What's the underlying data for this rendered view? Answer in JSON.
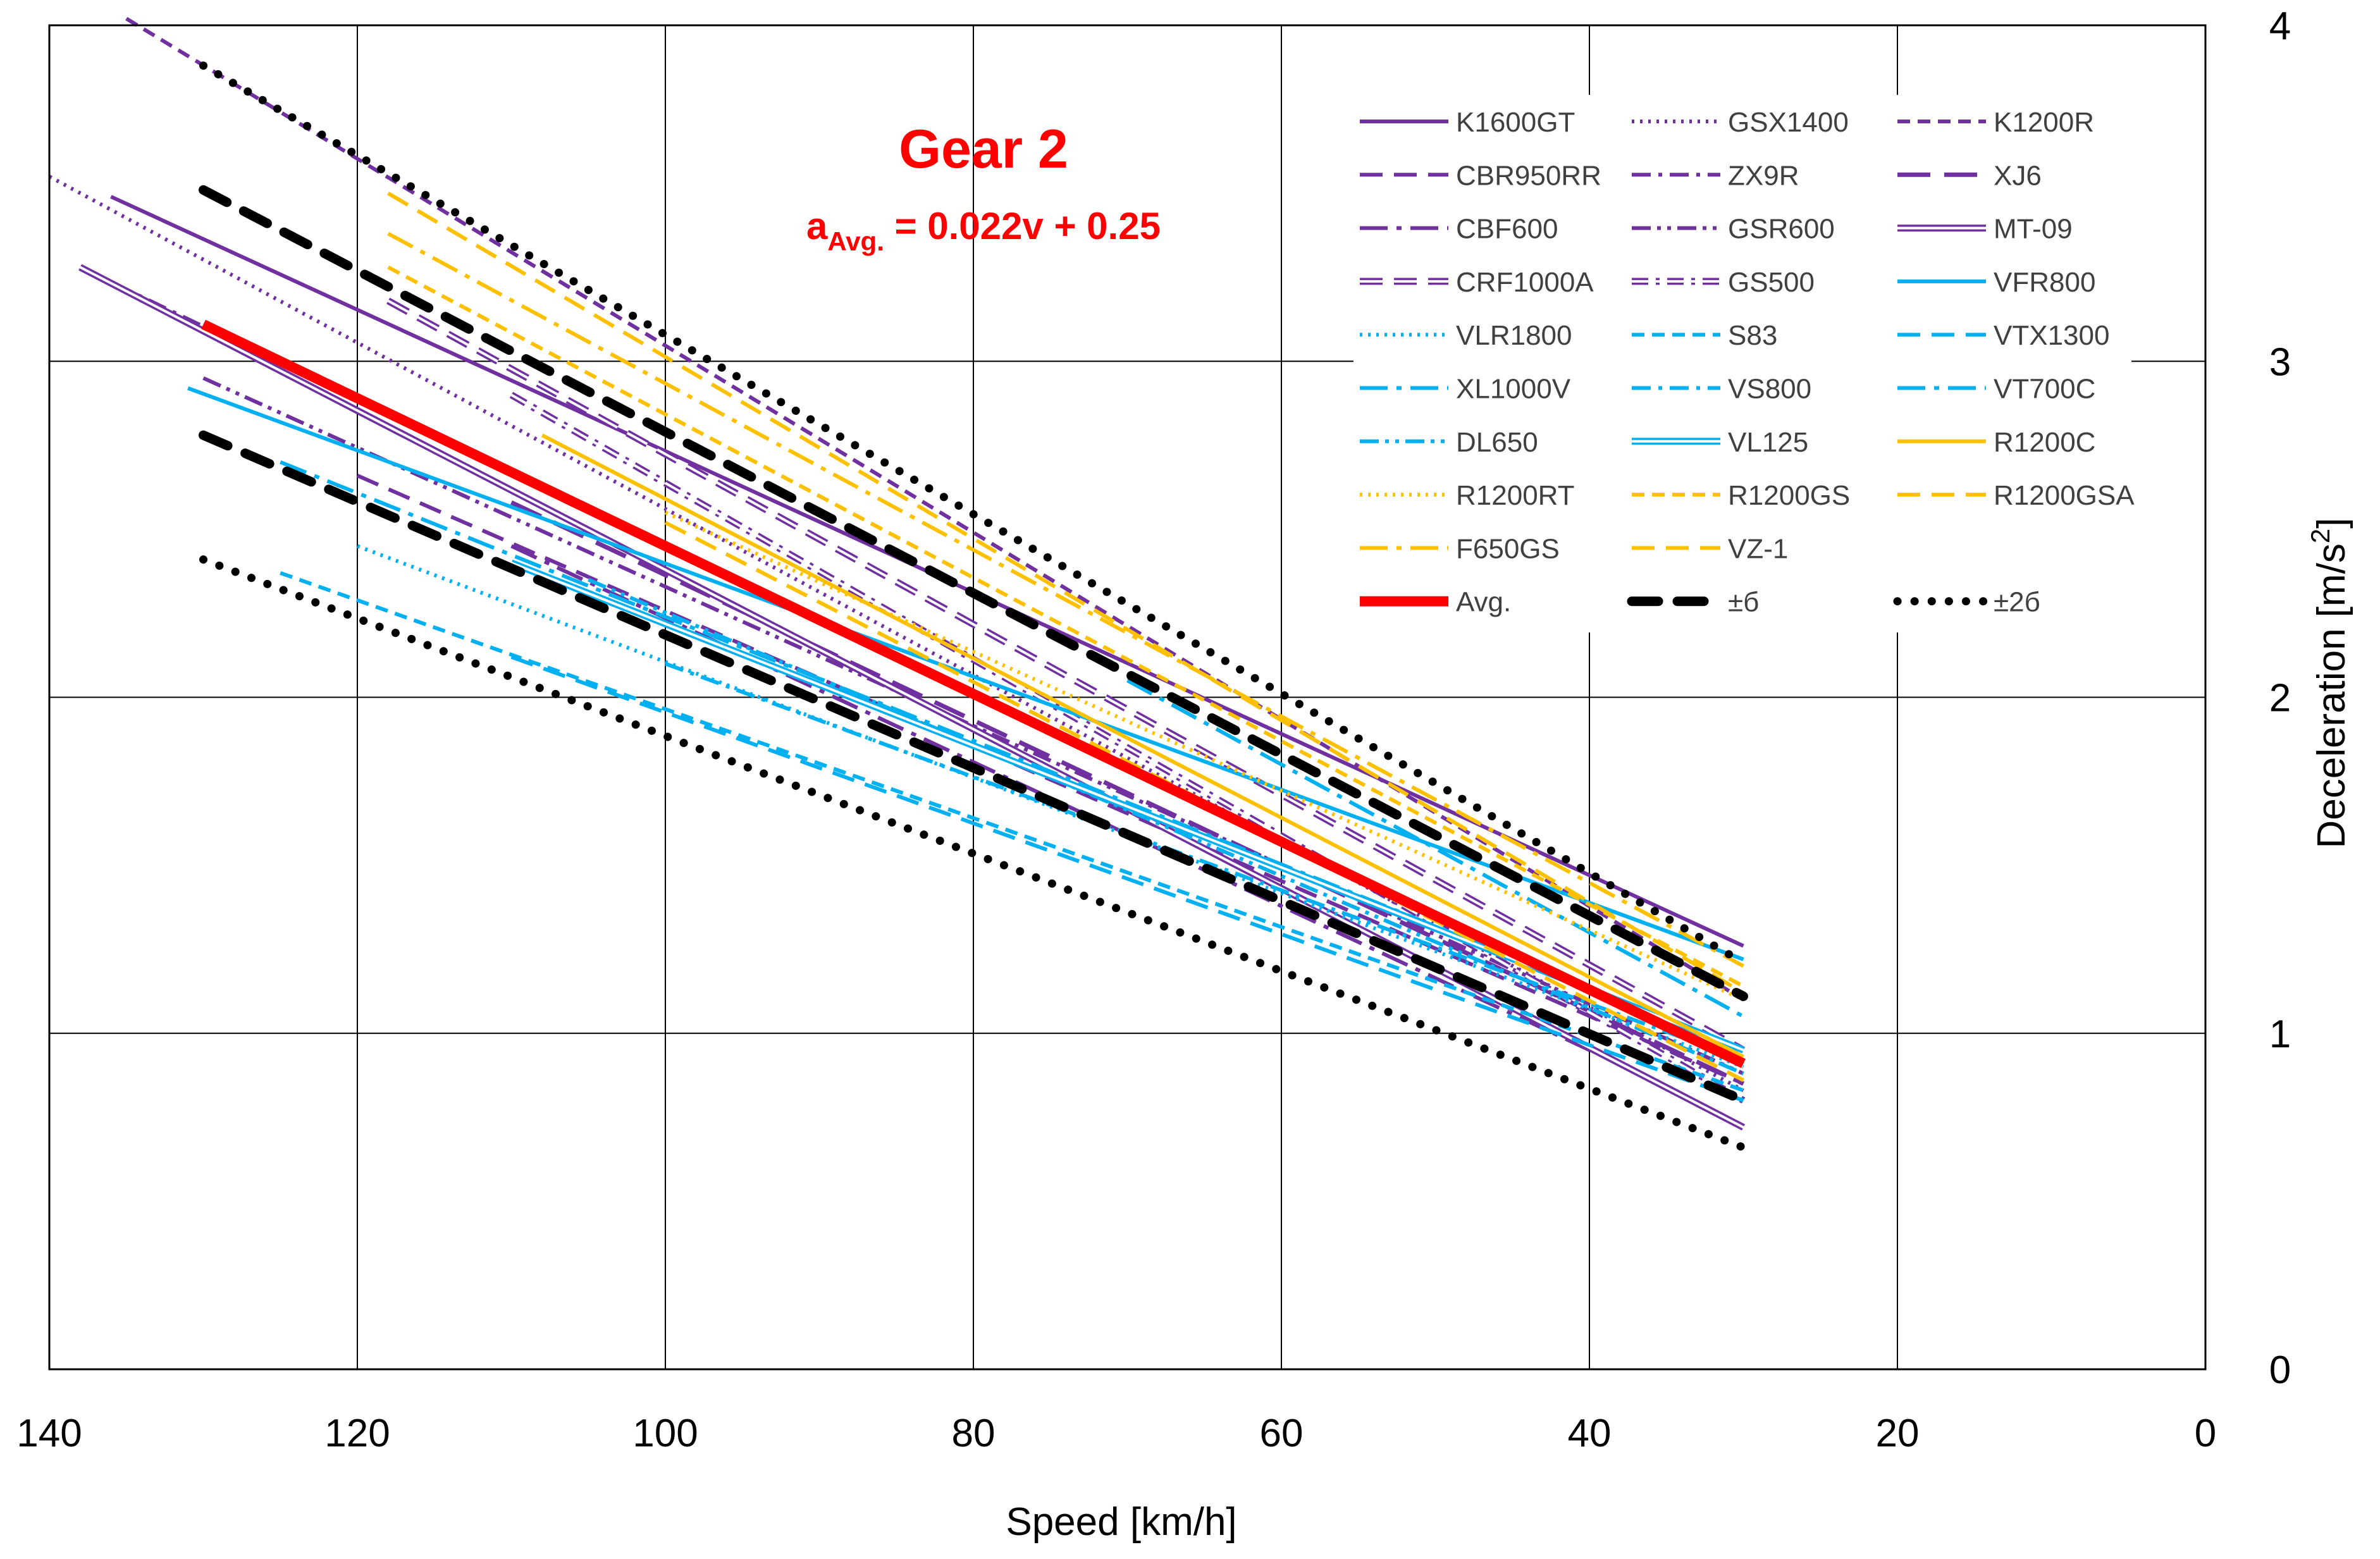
{
  "chart_data": {
    "type": "line",
    "title": "Gear 2",
    "formula": {
      "lead": "a",
      "sub": "Avg.",
      "rest": " = 0.022v + 0.25"
    },
    "xlabel": "Speed [km/h]",
    "ylabel_parts": {
      "main": "Deceleration [m/s",
      "sup": "2",
      "end": "]"
    },
    "xlim": [
      140,
      0
    ],
    "ylim": [
      0,
      4
    ],
    "x_ticks": [
      140,
      120,
      100,
      80,
      60,
      40,
      20,
      0
    ],
    "y_ticks": [
      0,
      1,
      2,
      3,
      4
    ],
    "grid": true,
    "legend_position": "top-right",
    "colors": {
      "purple": "#7030A0",
      "blue": "#00B0F0",
      "gold": "#FFC000",
      "red": "#FF0000",
      "black": "#000000"
    },
    "series": [
      {
        "name": "K1600GT",
        "color": "#7030A0",
        "style": "solid",
        "x": [
          136,
          30
        ],
        "y": [
          3.49,
          1.26
        ]
      },
      {
        "name": "GSX1400",
        "color": "#7030A0",
        "style": "dot",
        "x": [
          140,
          30
        ],
        "y": [
          3.55,
          0.83
        ]
      },
      {
        "name": "K1200R",
        "color": "#7030A0",
        "style": "dash",
        "x": [
          135,
          30
        ],
        "y": [
          4.02,
          1.1
        ]
      },
      {
        "name": "CBR950RR",
        "color": "#7030A0",
        "style": "longdash",
        "x": [
          120,
          30
        ],
        "y": [
          2.66,
          0.85
        ]
      },
      {
        "name": "ZX9R",
        "color": "#7030A0",
        "style": "dashdot",
        "x": [
          138,
          30
        ],
        "y": [
          3.28,
          0.9
        ]
      },
      {
        "name": "XJ6",
        "color": "#7030A0",
        "style": "longdashbig",
        "x": [
          110,
          30
        ],
        "y": [
          2.58,
          0.85
        ]
      },
      {
        "name": "CBF600",
        "color": "#7030A0",
        "style": "longdashdot",
        "x": [
          110,
          40
        ],
        "y": [
          2.45,
          0.95
        ]
      },
      {
        "name": "GSR600",
        "color": "#7030A0",
        "style": "dashdotdot",
        "x": [
          130,
          30
        ],
        "y": [
          2.95,
          0.88
        ]
      },
      {
        "name": "MT-09",
        "color": "#7030A0",
        "style": "double",
        "x": [
          138,
          30
        ],
        "y": [
          3.28,
          0.72
        ]
      },
      {
        "name": "CRF1000A",
        "color": "#7030A0",
        "style": "doubledash",
        "x": [
          118,
          30
        ],
        "y": [
          3.18,
          0.95
        ]
      },
      {
        "name": "GS500",
        "color": "#7030A0",
        "style": "doubledashdot",
        "x": [
          110,
          30
        ],
        "y": [
          2.9,
          0.8
        ]
      },
      {
        "name": "VFR800",
        "color": "#00B0F0",
        "style": "solid",
        "x": [
          131,
          30
        ],
        "y": [
          2.92,
          1.22
        ]
      },
      {
        "name": "VLR1800",
        "color": "#00B0F0",
        "style": "dot",
        "x": [
          120,
          30
        ],
        "y": [
          2.45,
          0.9
        ]
      },
      {
        "name": "S83",
        "color": "#00B0F0",
        "style": "dash",
        "x": [
          125,
          30
        ],
        "y": [
          2.37,
          0.83
        ]
      },
      {
        "name": "VTX1300",
        "color": "#00B0F0",
        "style": "longdash",
        "x": [
          110,
          30
        ],
        "y": [
          2.12,
          0.8
        ]
      },
      {
        "name": "XL1000V",
        "color": "#00B0F0",
        "style": "longdashdot",
        "x": [
          125,
          30
        ],
        "y": [
          2.7,
          0.95
        ]
      },
      {
        "name": "VS800",
        "color": "#00B0F0",
        "style": "dashdot",
        "x": [
          100,
          30
        ],
        "y": [
          2.1,
          0.92
        ]
      },
      {
        "name": "VT700C",
        "color": "#00B0F0",
        "style": "longdashdot",
        "x": [
          70,
          30
        ],
        "y": [
          2.05,
          1.05
        ]
      },
      {
        "name": "DL650",
        "color": "#00B0F0",
        "style": "dashdotdot",
        "x": [
          105,
          30
        ],
        "y": [
          2.35,
          0.88
        ]
      },
      {
        "name": "VL125",
        "color": "#00B0F0",
        "style": "double",
        "x": [
          110,
          30
        ],
        "y": [
          2.4,
          0.95
        ]
      },
      {
        "name": "R1200C",
        "color": "#FFC000",
        "style": "solid",
        "x": [
          108,
          30
        ],
        "y": [
          2.78,
          0.93
        ]
      },
      {
        "name": "R1200RT",
        "color": "#FFC000",
        "style": "dot",
        "x": [
          100,
          30
        ],
        "y": [
          2.55,
          1.1
        ]
      },
      {
        "name": "R1200GS",
        "color": "#FFC000",
        "style": "dash",
        "x": [
          118,
          30
        ],
        "y": [
          3.28,
          1.14
        ]
      },
      {
        "name": "R1200GSA",
        "color": "#FFC000",
        "style": "longdash",
        "x": [
          118,
          30
        ],
        "y": [
          3.5,
          1.12
        ]
      },
      {
        "name": "F650GS",
        "color": "#FFC000",
        "style": "longdashdot",
        "x": [
          118,
          30
        ],
        "y": [
          3.38,
          1.2
        ]
      },
      {
        "name": "VZ-1",
        "color": "#FFC000",
        "style": "longdash",
        "x": [
          100,
          30
        ],
        "y": [
          2.52,
          0.86
        ]
      },
      {
        "name": "Avg.",
        "color": "#FF0000",
        "style": "thick",
        "x": [
          130,
          30
        ],
        "y": [
          3.11,
          0.91
        ]
      },
      {
        "name": "±б",
        "color": "#000000",
        "style": "sigma",
        "x": [
          130,
          30
        ],
        "y": [
          3.51,
          1.11
        ]
      },
      {
        "name": "±б",
        "color": "#000000",
        "style": "sigma",
        "x": [
          130,
          30
        ],
        "y": [
          2.78,
          0.8
        ]
      },
      {
        "name": "±2б",
        "color": "#000000",
        "style": "sigma2",
        "x": [
          130,
          30
        ],
        "y": [
          3.88,
          1.21
        ]
      },
      {
        "name": "±2б",
        "color": "#000000",
        "style": "sigma2",
        "x": [
          130,
          30
        ],
        "y": [
          2.41,
          0.66
        ]
      }
    ],
    "legend": [
      {
        "label": "K1600GT",
        "color": "#7030A0",
        "style": "solid"
      },
      {
        "label": "GSX1400",
        "color": "#7030A0",
        "style": "dot"
      },
      {
        "label": "K1200R",
        "color": "#7030A0",
        "style": "dash"
      },
      {
        "label": "CBR950RR",
        "color": "#7030A0",
        "style": "longdash"
      },
      {
        "label": "ZX9R",
        "color": "#7030A0",
        "style": "dashdot"
      },
      {
        "label": "XJ6",
        "color": "#7030A0",
        "style": "longdashbig"
      },
      {
        "label": "CBF600",
        "color": "#7030A0",
        "style": "longdashdot"
      },
      {
        "label": "GSR600",
        "color": "#7030A0",
        "style": "dashdotdot"
      },
      {
        "label": "MT-09",
        "color": "#7030A0",
        "style": "double"
      },
      {
        "label": "CRF1000A",
        "color": "#7030A0",
        "style": "doubledash"
      },
      {
        "label": "GS500",
        "color": "#7030A0",
        "style": "doubledashdot"
      },
      {
        "label": "VFR800",
        "color": "#00B0F0",
        "style": "solid"
      },
      {
        "label": "VLR1800",
        "color": "#00B0F0",
        "style": "dot"
      },
      {
        "label": "S83",
        "color": "#00B0F0",
        "style": "dash"
      },
      {
        "label": "VTX1300",
        "color": "#00B0F0",
        "style": "longdash"
      },
      {
        "label": "XL1000V",
        "color": "#00B0F0",
        "style": "longdashdot"
      },
      {
        "label": "VS800",
        "color": "#00B0F0",
        "style": "dashdot"
      },
      {
        "label": "VT700C",
        "color": "#00B0F0",
        "style": "longdashdot"
      },
      {
        "label": "DL650",
        "color": "#00B0F0",
        "style": "dashdotdot"
      },
      {
        "label": "VL125",
        "color": "#00B0F0",
        "style": "double"
      },
      {
        "label": "R1200C",
        "color": "#FFC000",
        "style": "solid"
      },
      {
        "label": "R1200RT",
        "color": "#FFC000",
        "style": "dot"
      },
      {
        "label": "R1200GS",
        "color": "#FFC000",
        "style": "dash"
      },
      {
        "label": "R1200GSA",
        "color": "#FFC000",
        "style": "longdash"
      },
      {
        "label": "F650GS",
        "color": "#FFC000",
        "style": "longdashdot"
      },
      {
        "label": "VZ-1",
        "color": "#FFC000",
        "style": "longdash"
      },
      null,
      {
        "label": "Avg.",
        "color": "#FF0000",
        "style": "thick"
      },
      {
        "label": "±б",
        "color": "#000000",
        "style": "sigma"
      },
      {
        "label": "±2б",
        "color": "#000000",
        "style": "sigma2"
      }
    ]
  }
}
